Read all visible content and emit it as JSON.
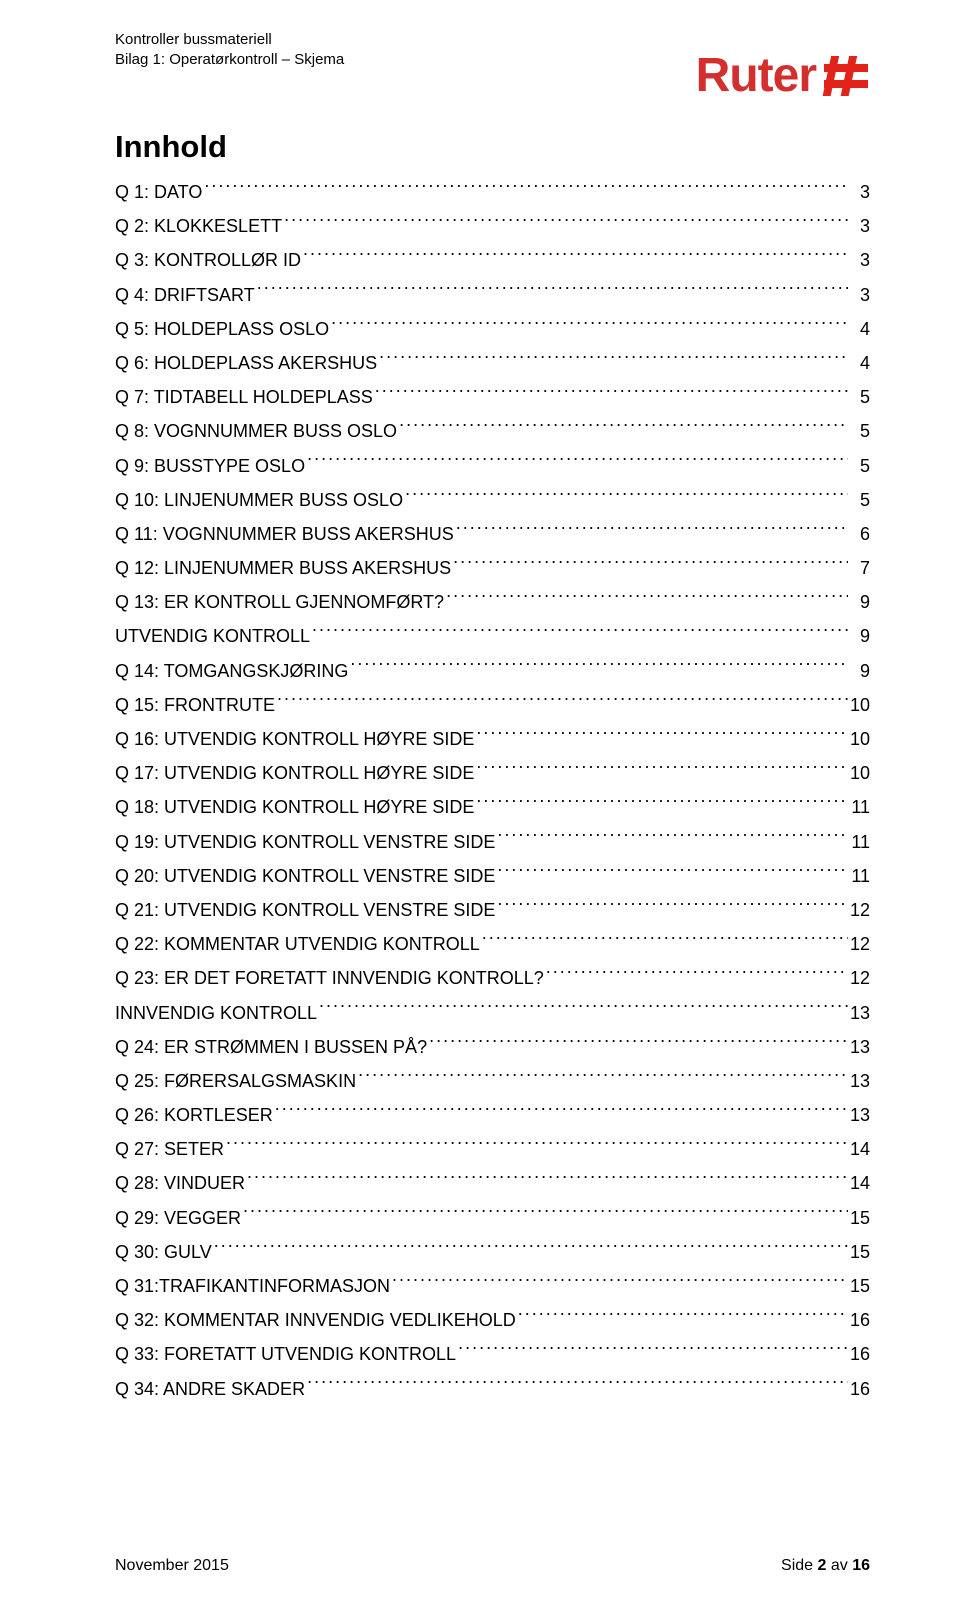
{
  "header": {
    "line1": "Kontroller bussmateriell",
    "line2": "Bilag 1: Operatørkontroll – Skjema"
  },
  "logo": {
    "text": "Ruter",
    "color": "#e2231a"
  },
  "title": "Innhold",
  "toc": [
    {
      "label": "Q 1: DATO",
      "page": "3"
    },
    {
      "label": "Q 2: KLOKKESLETT",
      "page": "3"
    },
    {
      "label": "Q 3: KONTROLLØR ID",
      "page": "3"
    },
    {
      "label": "Q 4: DRIFTSART",
      "page": "3"
    },
    {
      "label": "Q 5: HOLDEPLASS OSLO",
      "page": "4"
    },
    {
      "label": "Q 6: HOLDEPLASS AKERSHUS",
      "page": "4"
    },
    {
      "label": "Q 7: TIDTABELL HOLDEPLASS",
      "page": "5"
    },
    {
      "label": "Q 8: VOGNNUMMER BUSS OSLO",
      "page": "5"
    },
    {
      "label": "Q 9: BUSSTYPE OSLO",
      "page": "5"
    },
    {
      "label": "Q 10: LINJENUMMER BUSS OSLO",
      "page": "5"
    },
    {
      "label": "Q 11: VOGNNUMMER BUSS AKERSHUS",
      "page": "6"
    },
    {
      "label": "Q 12: LINJENUMMER BUSS AKERSHUS",
      "page": "7"
    },
    {
      "label": "Q 13: ER KONTROLL GJENNOMFØRT?",
      "page": "9"
    },
    {
      "label": "UTVENDIG KONTROLL",
      "page": "9"
    },
    {
      "label": "Q 14: TOMGANGSKJØRING",
      "page": "9"
    },
    {
      "label": "Q 15: FRONTRUTE",
      "page": "10"
    },
    {
      "label": "Q 16: UTVENDIG KONTROLL HØYRE SIDE",
      "page": "10"
    },
    {
      "label": "Q 17: UTVENDIG KONTROLL HØYRE SIDE",
      "page": "10"
    },
    {
      "label": "Q 18: UTVENDIG KONTROLL HØYRE SIDE",
      "page": "11"
    },
    {
      "label": "Q 19: UTVENDIG KONTROLL VENSTRE SIDE",
      "page": "11"
    },
    {
      "label": "Q 20: UTVENDIG KONTROLL VENSTRE SIDE",
      "page": "11"
    },
    {
      "label": "Q 21: UTVENDIG KONTROLL VENSTRE SIDE",
      "page": "12"
    },
    {
      "label": "Q 22: KOMMENTAR UTVENDIG KONTROLL",
      "page": "12"
    },
    {
      "label": "Q 23: ER DET FORETATT INNVENDIG KONTROLL?",
      "page": "12"
    },
    {
      "label": "INNVENDIG KONTROLL",
      "page": "13"
    },
    {
      "label": "Q 24: ER STRØMMEN I BUSSEN PÅ?",
      "page": "13"
    },
    {
      "label": "Q 25: FØRERSALGSMASKIN",
      "page": "13"
    },
    {
      "label": "Q 26: KORTLESER",
      "page": "13"
    },
    {
      "label": "Q 27: SETER",
      "page": "14"
    },
    {
      "label": "Q 28: VINDUER",
      "page": "14"
    },
    {
      "label": "Q 29: VEGGER",
      "page": "15"
    },
    {
      "label": "Q 30: GULV",
      "page": "15"
    },
    {
      "label": "Q 31:TRAFIKANTINFORMASJON",
      "page": "15"
    },
    {
      "label": "Q 32: KOMMENTAR INNVENDIG VEDLIKEHOLD",
      "page": "16"
    },
    {
      "label": "Q 33: FORETATT UTVENDIG KONTROLL",
      "page": "16"
    },
    {
      "label": "Q 34: ANDRE SKADER",
      "page": "16"
    }
  ],
  "footer": {
    "left": "November 2015",
    "right_prefix": "Side ",
    "right_page": "2",
    "right_mid": " av ",
    "right_total": "16"
  }
}
